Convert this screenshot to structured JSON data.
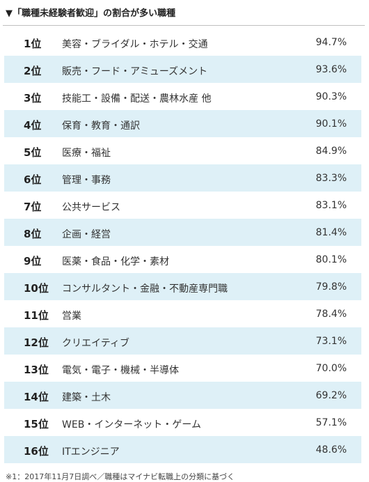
{
  "header": {
    "title": "▼「職種未経験者歓迎」の割合が多い職種"
  },
  "rows": [
    {
      "rank": "1位",
      "job": "美容・ブライダル・ホテル・交通",
      "pct": "94.7%"
    },
    {
      "rank": "2位",
      "job": "販売・フード・アミューズメント",
      "pct": "93.6%"
    },
    {
      "rank": "3位",
      "job": "技能工・設備・配送・農林水産 他",
      "pct": "90.3%"
    },
    {
      "rank": "4位",
      "job": "保育・教育・通訳",
      "pct": "90.1%"
    },
    {
      "rank": "5位",
      "job": "医療・福祉",
      "pct": "84.9%"
    },
    {
      "rank": "6位",
      "job": "管理・事務",
      "pct": "83.3%"
    },
    {
      "rank": "7位",
      "job": "公共サービス",
      "pct": "83.1%"
    },
    {
      "rank": "8位",
      "job": "企画・経営",
      "pct": "81.4%"
    },
    {
      "rank": "9位",
      "job": "医薬・食品・化学・素材",
      "pct": "80.1%"
    },
    {
      "rank": "10位",
      "job": "コンサルタント・金融・不動産専門職",
      "pct": "79.8%"
    },
    {
      "rank": "11位",
      "job": "営業",
      "pct": "78.4%"
    },
    {
      "rank": "12位",
      "job": "クリエイティブ",
      "pct": "73.1%"
    },
    {
      "rank": "13位",
      "job": "電気・電子・機械・半導体",
      "pct": "70.0%"
    },
    {
      "rank": "14位",
      "job": "建築・土木",
      "pct": "69.2%"
    },
    {
      "rank": "15位",
      "job": "WEB・インターネット・ゲーム",
      "pct": "57.1%"
    },
    {
      "rank": "16位",
      "job": "ITエンジニア",
      "pct": "48.6%"
    }
  ],
  "footnote": "※1：2017年11月7日調べ／職種はマイナビ転職上の分類に基づく",
  "colors": {
    "shaded_row": "#def0f7",
    "text": "#333333",
    "divider": "#bfbfbf"
  }
}
